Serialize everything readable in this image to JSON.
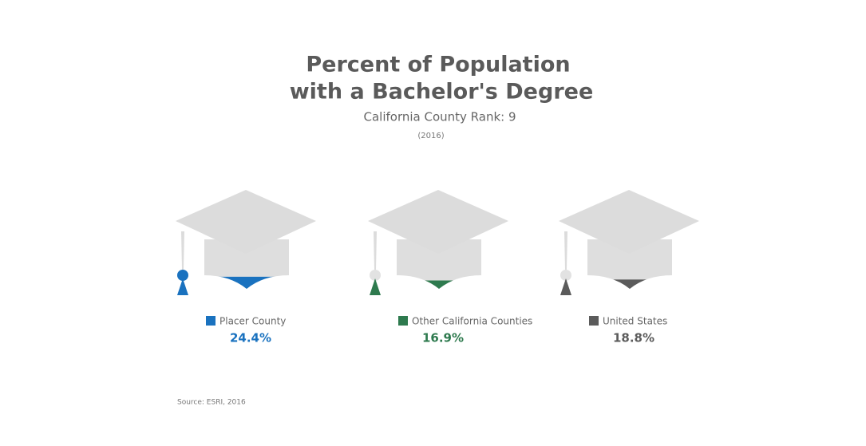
{
  "chart_data": {
    "type": "pictograph",
    "title": [
      "Percent of Population",
      "with a Bachelor's Degree"
    ],
    "subtitle": "California County Rank: 9",
    "note": "(2016)",
    "source": "Source: ESRI, 2016",
    "categories": [
      "Placer County",
      "Other California Counties",
      "United States"
    ],
    "values": [
      24.4,
      16.9,
      18.8
    ],
    "value_labels": [
      "24.4%",
      "16.9%",
      "18.8%"
    ],
    "colors": [
      "#1a72bf",
      "#2e7a4e",
      "#5b5b5b"
    ]
  }
}
